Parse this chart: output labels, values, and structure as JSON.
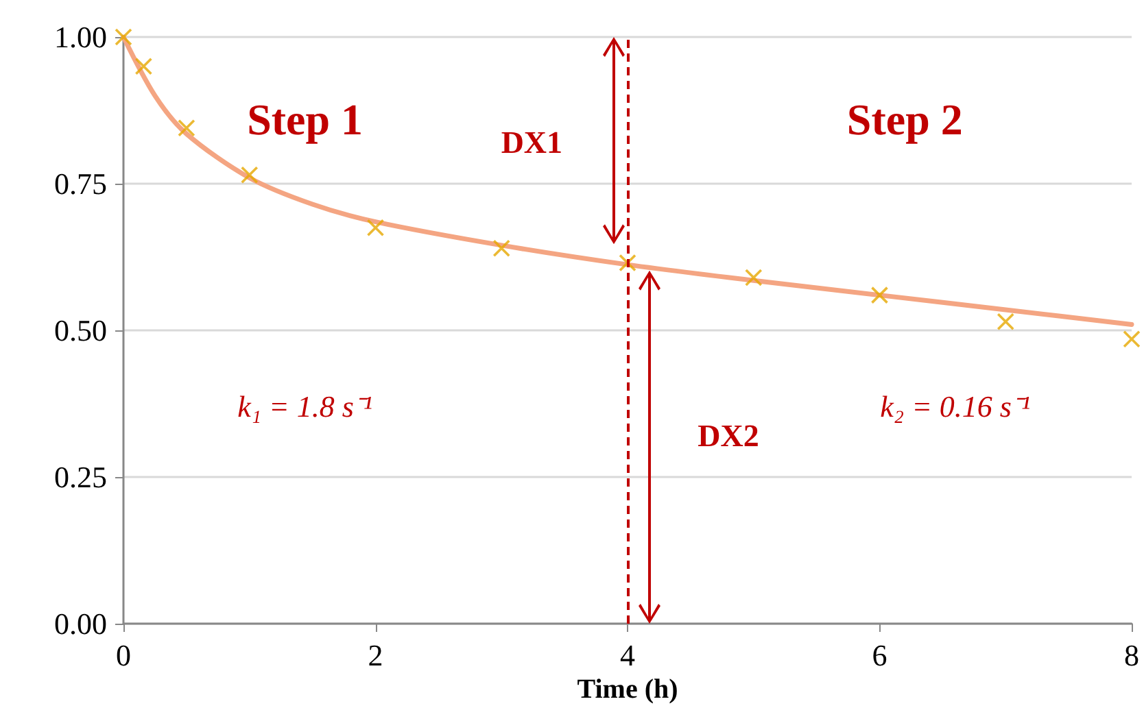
{
  "chart_data": {
    "type": "scatter",
    "xlabel": "Time (h)",
    "xlim": [
      0,
      8
    ],
    "xticks": [
      0,
      2,
      4,
      6,
      8
    ],
    "ylim": [
      0,
      1
    ],
    "yticks": [
      {
        "value": 0,
        "label": "0.00"
      },
      {
        "value": 0.25,
        "label": "0.25"
      },
      {
        "value": 0.5,
        "label": "0.50"
      },
      {
        "value": 0.75,
        "label": "0.75"
      },
      {
        "value": 1,
        "label": "1.00"
      }
    ],
    "grid": "y",
    "series": [
      {
        "type": "line",
        "marker": "none",
        "color": "#f4a582",
        "x": [
          0,
          0.25,
          0.5,
          1,
          1.5,
          2,
          3,
          4,
          5,
          6,
          7,
          8
        ],
        "values": [
          1.0,
          0.9,
          0.835,
          0.76,
          0.715,
          0.685,
          0.645,
          0.612,
          0.585,
          0.56,
          0.535,
          0.51
        ]
      },
      {
        "marker": "cross",
        "color": "#e6a800",
        "x": [
          0,
          0.16,
          0.5,
          1,
          2,
          3,
          4,
          5,
          6,
          7,
          8
        ],
        "values": [
          1.0,
          0.95,
          0.845,
          0.765,
          0.675,
          0.64,
          0.615,
          0.59,
          0.56,
          0.515,
          0.485
        ]
      }
    ],
    "ref_lines": [
      {
        "axis": "x",
        "value": 4,
        "color": "#c00000",
        "line_style": "dashed"
      }
    ],
    "annotations": [
      "Step 1",
      "Step 2",
      "DX1",
      "DX2",
      "k₁ = 1.8 s⁻¹",
      "k₂ = 0.16 s⁻¹"
    ]
  }
}
